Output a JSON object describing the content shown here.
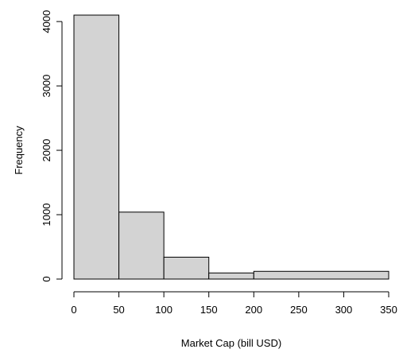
{
  "chart_data": {
    "type": "bar",
    "bins": [
      {
        "from": 0,
        "to": 50,
        "value": 4100
      },
      {
        "from": 50,
        "to": 100,
        "value": 1040
      },
      {
        "from": 100,
        "to": 150,
        "value": 340
      },
      {
        "from": 150,
        "to": 200,
        "value": 95
      },
      {
        "from": 200,
        "to": 350,
        "value": 120
      }
    ],
    "title": "",
    "xlabel": "Market Cap (bill USD)",
    "ylabel": "Frequency",
    "xlim": [
      0,
      350
    ],
    "ylim": [
      0,
      4100
    ],
    "x_ticks": [
      0,
      50,
      100,
      150,
      200,
      250,
      300,
      350
    ],
    "y_ticks": [
      0,
      1000,
      2000,
      3000,
      4000
    ],
    "bar_fill": "#d3d3d3",
    "bar_stroke": "#000000",
    "grid": false,
    "legend": "none"
  }
}
